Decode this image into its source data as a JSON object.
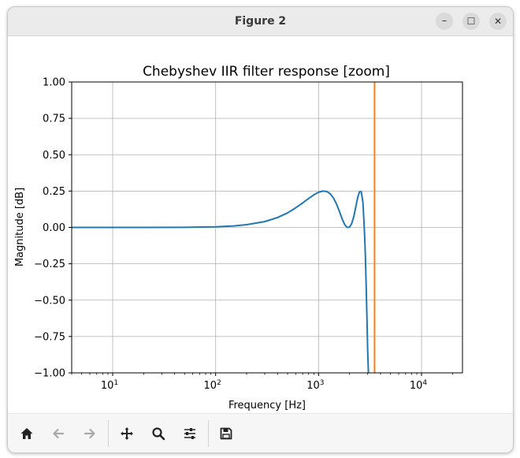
{
  "window": {
    "title": "Figure 2"
  },
  "controls": {
    "minimize": "–",
    "maximize": "☐",
    "close": "✕"
  },
  "toolbar": {
    "buttons": [
      {
        "name": "home-button",
        "icon": "home-icon"
      },
      {
        "name": "back-button",
        "icon": "arrow-left-icon"
      },
      {
        "name": "forward-button",
        "icon": "arrow-right-icon"
      },
      {
        "name": "pan-button",
        "icon": "move-icon"
      },
      {
        "name": "zoom-button",
        "icon": "magnifier-icon"
      },
      {
        "name": "configure-subplots-button",
        "icon": "sliders-icon"
      },
      {
        "name": "save-button",
        "icon": "floppy-disk-icon"
      }
    ]
  },
  "chart_data": {
    "type": "line",
    "title": "Chebyshev IIR filter response [zoom]",
    "xlabel": "Frequency [Hz]",
    "ylabel": "Magnitude [dB]",
    "xscale": "log",
    "xlim": [
      4,
      25000
    ],
    "ylim": [
      -1.0,
      1.0
    ],
    "grid": true,
    "xticks": [
      {
        "base": "10",
        "exp": "1"
      },
      {
        "base": "10",
        "exp": "2"
      },
      {
        "base": "10",
        "exp": "3"
      },
      {
        "base": "10",
        "exp": "4"
      }
    ],
    "yticks": [
      "1.00",
      "0.75",
      "0.50",
      "0.25",
      "0.00",
      "−0.25",
      "−0.50",
      "−0.75",
      "−1.00"
    ],
    "series": [
      {
        "color": "#1f77b4",
        "x": [
          4,
          10,
          20,
          50,
          100,
          150,
          200,
          300,
          400,
          500,
          600,
          700,
          800,
          900,
          1000,
          1100,
          1200,
          1300,
          1400,
          1500,
          1600,
          1700,
          1800,
          1900,
          2000,
          2100,
          2200,
          2300,
          2400,
          2500,
          2600,
          2700,
          2800,
          2850,
          2900,
          2950,
          3000,
          3050,
          3100
        ],
        "y": [
          0.0,
          0.0,
          0.0,
          0.001,
          0.004,
          0.01,
          0.019,
          0.04,
          0.068,
          0.1,
          0.135,
          0.168,
          0.199,
          0.224,
          0.242,
          0.25,
          0.247,
          0.231,
          0.201,
          0.158,
          0.107,
          0.056,
          0.018,
          0.0,
          0.002,
          0.027,
          0.075,
          0.142,
          0.206,
          0.245,
          0.245,
          0.17,
          -0.05,
          -0.2,
          -0.4,
          -0.62,
          -0.85,
          -1.0,
          -1.1
        ]
      },
      {
        "color": "#ff7f0e",
        "x": [
          3500,
          3500
        ],
        "y": [
          -1.0,
          1.0
        ]
      }
    ]
  }
}
